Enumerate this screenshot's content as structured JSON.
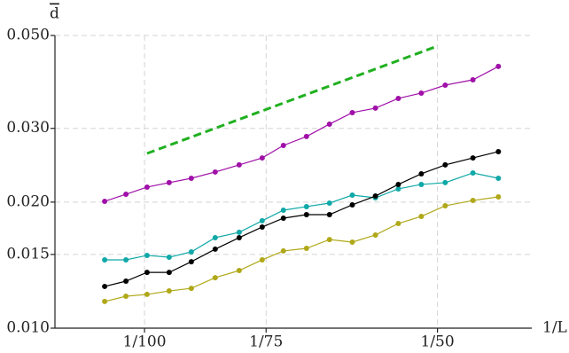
{
  "chart_data": {
    "type": "line",
    "y_label": "d",
    "x_label": "1/L",
    "log_x": true,
    "log_y": true,
    "grid": true,
    "xlim": [
      0.00809,
      0.025
    ],
    "ylim": [
      0.01,
      0.05
    ],
    "xticks": [
      {
        "value": 0.01,
        "label": "1/100"
      },
      {
        "value": 0.013333,
        "label": "1/75"
      },
      {
        "value": 0.02,
        "label": "1/50"
      }
    ],
    "yticks": [
      {
        "value": 0.01,
        "label": "0.010"
      },
      {
        "value": 0.015,
        "label": "0.015"
      },
      {
        "value": 0.02,
        "label": "0.020"
      },
      {
        "value": 0.03,
        "label": "0.030"
      },
      {
        "value": 0.05,
        "label": "0.050"
      }
    ],
    "x": [
      0.0091,
      0.00957,
      0.01006,
      0.0106,
      0.01117,
      0.01182,
      0.01251,
      0.01321,
      0.01389,
      0.01467,
      0.01549,
      0.01635,
      0.01727,
      0.01823,
      0.01925,
      0.02037,
      0.02175,
      0.0231
    ],
    "series": [
      {
        "color": "#a010a8",
        "values": [
          0.02009,
          0.02088,
          0.02172,
          0.02226,
          0.0228,
          0.0236,
          0.02454,
          0.0255,
          0.02731,
          0.02869,
          0.03071,
          0.03272,
          0.03353,
          0.03537,
          0.03642,
          0.03805,
          0.03918,
          0.04217
        ]
      },
      {
        "color": "#10a8a8",
        "values": [
          0.01456,
          0.01456,
          0.01492,
          0.01477,
          0.01521,
          0.01645,
          0.01694,
          0.01805,
          0.01913,
          0.01951,
          0.01989,
          0.02078,
          0.02048,
          0.02151,
          0.02204,
          0.02226,
          0.02348,
          0.0228
        ]
      },
      {
        "color": "#000000",
        "values": [
          0.01258,
          0.01295,
          0.01359,
          0.01359,
          0.01441,
          0.01544,
          0.01645,
          0.01744,
          0.01831,
          0.01867,
          0.01867,
          0.0197,
          0.02068,
          0.02204,
          0.02337,
          0.02454,
          0.0255,
          0.0264
        ]
      },
      {
        "color": "#b0a818",
        "values": [
          0.01158,
          0.01192,
          0.01204,
          0.01227,
          0.01245,
          0.0132,
          0.01373,
          0.01456,
          0.01529,
          0.01551,
          0.01628,
          0.01605,
          0.01669,
          0.01778,
          0.01849,
          0.0196,
          0.02018,
          0.02058
        ]
      }
    ],
    "reference_line": {
      "color": "#20b020",
      "x": [
        0.01006,
        0.02
      ],
      "values": [
        0.02614,
        0.04717
      ]
    }
  }
}
